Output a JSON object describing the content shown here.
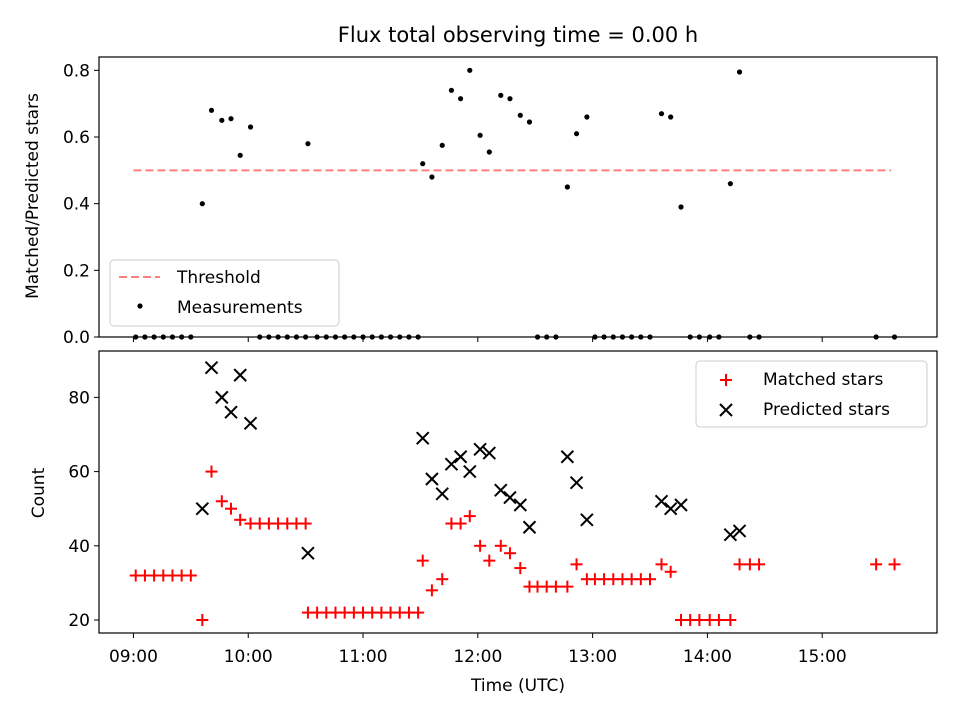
{
  "chart_data": [
    {
      "type": "scatter",
      "title": "Flux total observing time = 0.00 h",
      "xlabel": "",
      "ylabel": "Matched/Predicted stars",
      "xlim": [
        8.7,
        16.0
      ],
      "ylim": [
        0,
        0.84
      ],
      "yticks": [
        0.0,
        0.2,
        0.4,
        0.6,
        0.8
      ],
      "ytick_labels": [
        "0.0",
        "0.2",
        "0.4",
        "0.6",
        "0.8"
      ],
      "xticks": [
        9,
        10,
        11,
        12,
        13,
        14,
        15
      ],
      "legend_position": "lower-left",
      "threshold": {
        "name": "Threshold",
        "color": "#ff7f7f",
        "style": "dashed",
        "x": [
          9.0,
          15.6
        ],
        "y": 0.5
      },
      "series": [
        {
          "name": "Measurements",
          "marker": "dot",
          "color": "#000000",
          "points": [
            [
              9.02,
              0
            ],
            [
              9.1,
              0
            ],
            [
              9.18,
              0
            ],
            [
              9.26,
              0
            ],
            [
              9.34,
              0
            ],
            [
              9.42,
              0
            ],
            [
              9.5,
              0
            ],
            [
              9.6,
              0.4
            ],
            [
              9.68,
              0.68
            ],
            [
              9.77,
              0.65
            ],
            [
              9.85,
              0.655
            ],
            [
              9.93,
              0.545
            ],
            [
              10.02,
              0.63
            ],
            [
              10.1,
              0
            ],
            [
              10.18,
              0
            ],
            [
              10.26,
              0
            ],
            [
              10.34,
              0
            ],
            [
              10.42,
              0
            ],
            [
              10.5,
              0
            ],
            [
              10.52,
              0.58
            ],
            [
              10.6,
              0
            ],
            [
              10.68,
              0
            ],
            [
              10.76,
              0
            ],
            [
              10.84,
              0
            ],
            [
              10.92,
              0
            ],
            [
              11.0,
              0
            ],
            [
              11.08,
              0
            ],
            [
              11.16,
              0
            ],
            [
              11.24,
              0
            ],
            [
              11.32,
              0
            ],
            [
              11.4,
              0
            ],
            [
              11.48,
              0
            ],
            [
              11.52,
              0.52
            ],
            [
              11.6,
              0.48
            ],
            [
              11.69,
              0.575
            ],
            [
              11.77,
              0.74
            ],
            [
              11.85,
              0.715
            ],
            [
              11.93,
              0.8
            ],
            [
              12.02,
              0.605
            ],
            [
              12.1,
              0.555
            ],
            [
              12.2,
              0.725
            ],
            [
              12.28,
              0.715
            ],
            [
              12.37,
              0.665
            ],
            [
              12.45,
              0.645
            ],
            [
              12.52,
              0
            ],
            [
              12.6,
              0
            ],
            [
              12.68,
              0
            ],
            [
              12.78,
              0.45
            ],
            [
              12.86,
              0.61
            ],
            [
              12.95,
              0.66
            ],
            [
              13.02,
              0
            ],
            [
              13.1,
              0
            ],
            [
              13.18,
              0
            ],
            [
              13.26,
              0
            ],
            [
              13.34,
              0
            ],
            [
              13.42,
              0
            ],
            [
              13.5,
              0
            ],
            [
              13.6,
              0.67
            ],
            [
              13.68,
              0.66
            ],
            [
              13.77,
              0.39
            ],
            [
              13.85,
              0
            ],
            [
              13.93,
              0
            ],
            [
              14.02,
              0
            ],
            [
              14.1,
              0
            ],
            [
              14.2,
              0.46
            ],
            [
              14.28,
              0.795
            ],
            [
              14.37,
              0
            ],
            [
              14.45,
              0
            ],
            [
              15.47,
              0
            ],
            [
              15.63,
              0
            ]
          ]
        }
      ]
    },
    {
      "type": "scatter",
      "title": "",
      "xlabel": "Time (UTC)",
      "ylabel": "Count",
      "xlim": [
        8.7,
        16.0
      ],
      "ylim": [
        16.5,
        92.5
      ],
      "yticks": [
        20,
        40,
        60,
        80
      ],
      "ytick_labels": [
        "20",
        "40",
        "60",
        "80"
      ],
      "xticks": [
        9,
        10,
        11,
        12,
        13,
        14,
        15
      ],
      "xtick_labels": [
        "09:00",
        "10:00",
        "11:00",
        "12:00",
        "13:00",
        "14:00",
        "15:00"
      ],
      "legend_position": "upper-right",
      "series": [
        {
          "name": "Matched stars",
          "marker": "plus",
          "color": "#ff0000",
          "points": [
            [
              9.02,
              32
            ],
            [
              9.1,
              32
            ],
            [
              9.18,
              32
            ],
            [
              9.26,
              32
            ],
            [
              9.34,
              32
            ],
            [
              9.42,
              32
            ],
            [
              9.5,
              32
            ],
            [
              9.6,
              20
            ],
            [
              9.68,
              60
            ],
            [
              9.77,
              52
            ],
            [
              9.85,
              50
            ],
            [
              9.93,
              47
            ],
            [
              10.02,
              46
            ],
            [
              10.1,
              46
            ],
            [
              10.18,
              46
            ],
            [
              10.26,
              46
            ],
            [
              10.34,
              46
            ],
            [
              10.42,
              46
            ],
            [
              10.5,
              46
            ],
            [
              10.52,
              22
            ],
            [
              10.6,
              22
            ],
            [
              10.68,
              22
            ],
            [
              10.76,
              22
            ],
            [
              10.84,
              22
            ],
            [
              10.92,
              22
            ],
            [
              11.0,
              22
            ],
            [
              11.08,
              22
            ],
            [
              11.16,
              22
            ],
            [
              11.24,
              22
            ],
            [
              11.32,
              22
            ],
            [
              11.4,
              22
            ],
            [
              11.48,
              22
            ],
            [
              11.52,
              36
            ],
            [
              11.6,
              28
            ],
            [
              11.69,
              31
            ],
            [
              11.77,
              46
            ],
            [
              11.85,
              46
            ],
            [
              11.93,
              48
            ],
            [
              12.02,
              40
            ],
            [
              12.1,
              36
            ],
            [
              12.2,
              40
            ],
            [
              12.28,
              38
            ],
            [
              12.37,
              34
            ],
            [
              12.45,
              29
            ],
            [
              12.52,
              29
            ],
            [
              12.6,
              29
            ],
            [
              12.68,
              29
            ],
            [
              12.78,
              29
            ],
            [
              12.86,
              35
            ],
            [
              12.95,
              31
            ],
            [
              13.02,
              31
            ],
            [
              13.1,
              31
            ],
            [
              13.18,
              31
            ],
            [
              13.26,
              31
            ],
            [
              13.34,
              31
            ],
            [
              13.42,
              31
            ],
            [
              13.5,
              31
            ],
            [
              13.6,
              35
            ],
            [
              13.68,
              33
            ],
            [
              13.77,
              20
            ],
            [
              13.85,
              20
            ],
            [
              13.93,
              20
            ],
            [
              14.02,
              20
            ],
            [
              14.1,
              20
            ],
            [
              14.2,
              20
            ],
            [
              14.28,
              35
            ],
            [
              14.37,
              35
            ],
            [
              14.45,
              35
            ],
            [
              15.47,
              35
            ],
            [
              15.63,
              35
            ]
          ]
        },
        {
          "name": "Predicted stars",
          "marker": "x",
          "color": "#000000",
          "points": [
            [
              9.6,
              50
            ],
            [
              9.68,
              88
            ],
            [
              9.77,
              80
            ],
            [
              9.85,
              76
            ],
            [
              9.93,
              86
            ],
            [
              10.02,
              73
            ],
            [
              10.52,
              38
            ],
            [
              11.52,
              69
            ],
            [
              11.6,
              58
            ],
            [
              11.69,
              54
            ],
            [
              11.77,
              62
            ],
            [
              11.85,
              64
            ],
            [
              11.93,
              60
            ],
            [
              12.02,
              66
            ],
            [
              12.1,
              65
            ],
            [
              12.2,
              55
            ],
            [
              12.28,
              53
            ],
            [
              12.37,
              51
            ],
            [
              12.45,
              45
            ],
            [
              12.78,
              64
            ],
            [
              12.86,
              57
            ],
            [
              12.95,
              47
            ],
            [
              13.6,
              52
            ],
            [
              13.68,
              50
            ],
            [
              13.77,
              51
            ],
            [
              14.2,
              43
            ],
            [
              14.28,
              44
            ]
          ]
        }
      ]
    }
  ]
}
